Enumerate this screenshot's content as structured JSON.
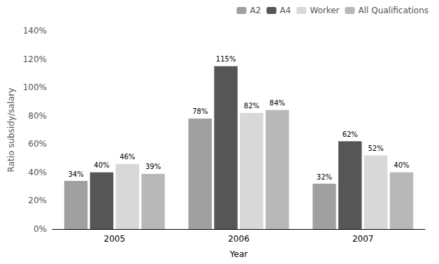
{
  "chart_data": {
    "type": "bar",
    "categories": [
      "2005",
      "2006",
      "2007"
    ],
    "series": [
      {
        "name": "A2",
        "color": "#a0a0a0",
        "values": [
          34,
          78,
          32
        ],
        "value_labels": [
          "34%",
          "78%",
          "32%"
        ]
      },
      {
        "name": "A4",
        "color": "#565656",
        "values": [
          40,
          115,
          62
        ],
        "value_labels": [
          "40%",
          "115%",
          "62%"
        ]
      },
      {
        "name": "Worker",
        "color": "#d8d8d8",
        "values": [
          46,
          82,
          52
        ],
        "value_labels": [
          "46%",
          "82%",
          "52%"
        ]
      },
      {
        "name": "All Qualifications",
        "color": "#b8b8b8",
        "values": [
          39,
          84,
          40
        ],
        "value_labels": [
          "39%",
          "84%",
          "40%"
        ]
      }
    ],
    "xlabel": "Year",
    "ylabel": "Ratio subsidy/salary",
    "ylim": [
      0,
      140
    ],
    "yticks": [
      {
        "value": 0,
        "label": "0%"
      },
      {
        "value": 20,
        "label": "20%"
      },
      {
        "value": 40,
        "label": "40%"
      },
      {
        "value": 60,
        "label": "60%"
      },
      {
        "value": 80,
        "label": "80%"
      },
      {
        "value": 100,
        "label": "100%"
      },
      {
        "value": 120,
        "label": "120%"
      },
      {
        "value": 140,
        "label": "140%"
      }
    ],
    "grid": false,
    "legend": "upper right",
    "data_labels": true
  }
}
